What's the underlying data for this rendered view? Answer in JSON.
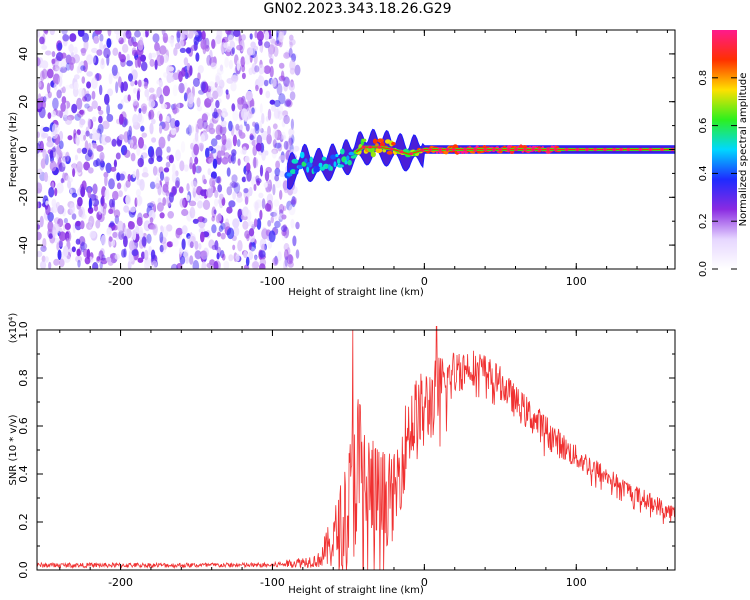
{
  "figure": {
    "title": "GN02.2023.343.18.26.G29"
  },
  "chart_data": [
    {
      "type": "heatmap",
      "xlabel": "Height of straight line (km)",
      "ylabel": "Frequency (Hz)",
      "xlim": [
        -255,
        165
      ],
      "ylim": [
        -50,
        50
      ],
      "xticks": [
        -200,
        -100,
        0,
        100
      ],
      "yticks": [
        -40,
        -20,
        0,
        20,
        40
      ],
      "colorbar": {
        "label": "Normalized spectral amplitude",
        "range": [
          0.0,
          1.0
        ],
        "ticks": [
          0.0,
          0.2,
          0.4,
          0.6,
          0.8
        ],
        "colormap": [
          "#ffffff",
          "#e6d6ff",
          "#8a2be2",
          "#1e2bff",
          "#00d8ff",
          "#2df01e",
          "#ffe000",
          "#ff3000",
          "#ff1a8c"
        ]
      },
      "noise_region": {
        "x": [
          -255,
          -90
        ],
        "frequency": [
          -50,
          50
        ],
        "amplitude_range": [
          0.05,
          0.35
        ]
      },
      "signal_track": [
        {
          "x": -90,
          "frequency": -10,
          "amplitude": 0.45
        },
        {
          "x": -80,
          "frequency": -5,
          "amplitude": 0.5
        },
        {
          "x": -70,
          "frequency": -7,
          "amplitude": 0.45
        },
        {
          "x": -60,
          "frequency": -5,
          "amplitude": 0.5
        },
        {
          "x": -50,
          "frequency": -3,
          "amplitude": 0.5
        },
        {
          "x": -40,
          "frequency": 1,
          "amplitude": 0.7
        },
        {
          "x": -30,
          "frequency": 1,
          "amplitude": 0.8
        },
        {
          "x": -20,
          "frequency": 0,
          "amplitude": 0.8
        },
        {
          "x": -10,
          "frequency": -2,
          "amplitude": 0.6
        },
        {
          "x": 0,
          "frequency": 0,
          "amplitude": 0.9
        },
        {
          "x": 50,
          "frequency": 0,
          "amplitude": 0.95
        },
        {
          "x": 90,
          "frequency": 0,
          "amplitude": 0.95
        },
        {
          "x": 165,
          "frequency": 0,
          "amplitude": 0.95
        }
      ]
    },
    {
      "type": "line",
      "xlabel": "Height of straight line (km)",
      "ylabel": "SNR (10 * v/v)",
      "y_multiplier": "(x10⁴)",
      "xlim": [
        -255,
        165
      ],
      "ylim": [
        0.0,
        1.0
      ],
      "xticks": [
        -200,
        -100,
        0,
        100
      ],
      "yticks": [
        "0.0",
        "0.2",
        "0.4",
        "0.6",
        "0.8",
        "1.0"
      ],
      "series": [
        {
          "color": "#f03030",
          "envelope": {
            "x": [
              -255,
              -100,
              -70,
              -60,
              -50,
              -45,
              -40,
              -30,
              -20,
              -10,
              0,
              10,
              20,
              30,
              40,
              50,
              60,
              70,
              80,
              90,
              100,
              110,
              120,
              130,
              140,
              150,
              165
            ],
            "mean": [
              0.02,
              0.02,
              0.04,
              0.12,
              0.25,
              0.45,
              0.35,
              0.3,
              0.3,
              0.6,
              0.66,
              0.75,
              0.82,
              0.85,
              0.83,
              0.78,
              0.7,
              0.64,
              0.58,
              0.52,
              0.47,
              0.43,
              0.39,
              0.35,
              0.31,
              0.28,
              0.23
            ],
            "spread": [
              0.01,
              0.01,
              0.03,
              0.12,
              0.25,
              0.4,
              0.3,
              0.22,
              0.18,
              0.18,
              0.18,
              0.15,
              0.1,
              0.08,
              0.07,
              0.07,
              0.07,
              0.07,
              0.07,
              0.06,
              0.05,
              0.05,
              0.04,
              0.04,
              0.04,
              0.04,
              0.04
            ]
          },
          "peaks": [
            {
              "x": -47,
              "y": 1.0
            },
            {
              "x": 8,
              "y": 1.02
            },
            {
              "x": 23,
              "y": 0.9
            }
          ]
        }
      ]
    }
  ]
}
